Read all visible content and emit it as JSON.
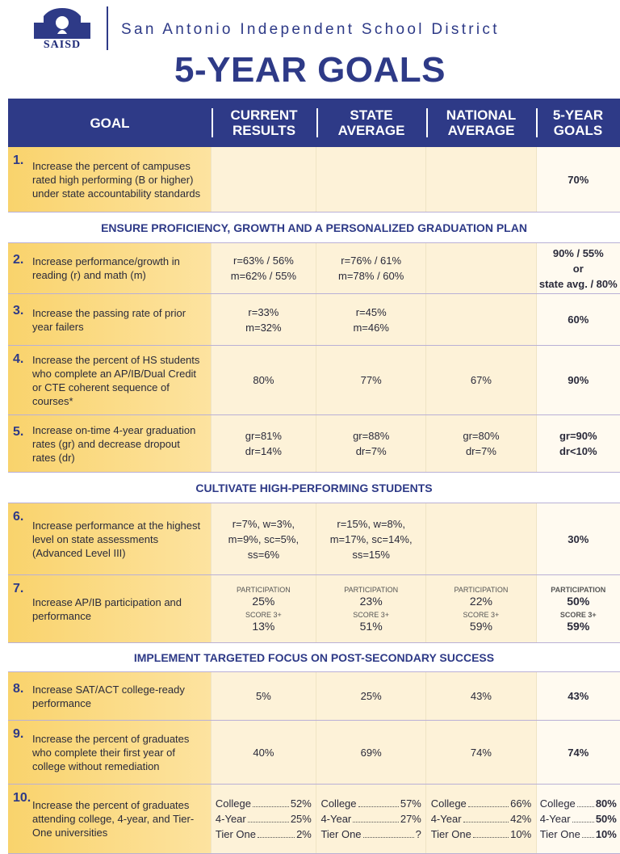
{
  "header": {
    "logo_text": "SAISD",
    "org": "San Antonio Independent School District",
    "title": "5-YEAR GOALS"
  },
  "table": {
    "columns": [
      "GOAL",
      "CURRENT RESULTS",
      "STATE AVERAGE",
      "NATIONAL AVERAGE",
      "5-YEAR GOALS"
    ],
    "rows": [
      {
        "number": "1.",
        "goal": "Increase the percent of campuses rated high performing (B or higher) under state accountability standards",
        "cells": [
          [],
          [],
          [],
          [
            "70%"
          ]
        ]
      },
      {
        "section": "ENSURE PROFICIENCY, GROWTH AND A PERSONALIZED GRADUATION PLAN"
      },
      {
        "number": "2.",
        "goal": "Increase performance/growth in reading (r) and math (m)",
        "cells": [
          [
            "r=63% / 56%",
            "m=62% / 55%"
          ],
          [
            "r=76% / 61%",
            "m=78% / 60%"
          ],
          [],
          [
            "90% / 55%",
            "or",
            "state avg. / 80%"
          ]
        ]
      },
      {
        "number": "3.",
        "goal": "Increase the passing rate of prior year failers",
        "cells": [
          [
            "r=33%",
            "m=32%"
          ],
          [
            "r=45%",
            "m=46%"
          ],
          [],
          [
            "60%"
          ]
        ]
      },
      {
        "number": "4.",
        "goal": "Increase the percent of HS students who complete an AP/IB/Dual Credit or CTE coherent sequence of courses*",
        "cells": [
          [
            "80%"
          ],
          [
            "77%"
          ],
          [
            "67%"
          ],
          [
            "90%"
          ]
        ]
      },
      {
        "number": "5.",
        "goal": "Increase on-time 4-year graduation rates (gr) and decrease dropout rates (dr)",
        "cells": [
          [
            "gr=81%",
            "dr=14%"
          ],
          [
            "gr=88%",
            "dr=7%"
          ],
          [
            "gr=80%",
            "dr=7%"
          ],
          [
            "gr=90%",
            "dr<10%"
          ]
        ]
      },
      {
        "section": "CULTIVATE HIGH-PERFORMING STUDENTS"
      },
      {
        "number": "6.",
        "goal": "Increase performance at the highest level on state assessments (Advanced Level III)",
        "cells": [
          [
            "r=7%, w=3%,",
            "m=9%, sc=5%,",
            "ss=6%"
          ],
          [
            "r=15%, w=8%,",
            "m=17%, sc=14%,",
            "ss=15%"
          ],
          [],
          [
            "30%"
          ]
        ]
      },
      {
        "number": "7.",
        "goal": "Increase AP/IB participation and performance",
        "cells": [
          [
            {
              "label": "PARTICIPATION",
              "value": "25%"
            },
            {
              "label": "SCORE 3+",
              "value": "13%"
            }
          ],
          [
            {
              "label": "PARTICIPATION",
              "value": "23%"
            },
            {
              "label": "SCORE 3+",
              "value": "51%"
            }
          ],
          [
            {
              "label": "PARTICIPATION",
              "value": "22%"
            },
            {
              "label": "SCORE 3+",
              "value": "59%"
            }
          ],
          [
            {
              "label": "PARTICIPATION",
              "value": "50%"
            },
            {
              "label": "SCORE 3+",
              "value": "59%"
            }
          ]
        ]
      },
      {
        "section": "IMPLEMENT TARGETED FOCUS ON POST-SECONDARY SUCCESS"
      },
      {
        "number": "8.",
        "goal": "Increase SAT/ACT college-ready performance",
        "cells": [
          [
            "5%"
          ],
          [
            "25%"
          ],
          [
            "43%"
          ],
          [
            "43%"
          ]
        ]
      },
      {
        "number": "9.",
        "goal": "Increase the percent of graduates who complete their first year of college without remediation",
        "cells": [
          [
            "40%"
          ],
          [
            "69%"
          ],
          [
            "74%"
          ],
          [
            "74%"
          ]
        ]
      },
      {
        "number": "10.",
        "goal": "Increase the percent of graduates attending college, 4-year, and Tier-One universities",
        "cells": [
          [
            {
              "name": "College",
              "value": "52%"
            },
            {
              "name": "4-Year",
              "value": "25%"
            },
            {
              "name": "Tier One",
              "value": "2%"
            }
          ],
          [
            {
              "name": "College",
              "value": "57%"
            },
            {
              "name": "4-Year",
              "value": "27%"
            },
            {
              "name": "Tier One",
              "value": "?"
            }
          ],
          [
            {
              "name": "College",
              "value": "66%"
            },
            {
              "name": "4-Year",
              "value": "42%"
            },
            {
              "name": "Tier One",
              "value": "10%"
            }
          ],
          [
            {
              "name": "College",
              "value": "80%"
            },
            {
              "name": "4-Year",
              "value": "50%"
            },
            {
              "name": "Tier One",
              "value": "10%"
            }
          ]
        ]
      }
    ]
  }
}
